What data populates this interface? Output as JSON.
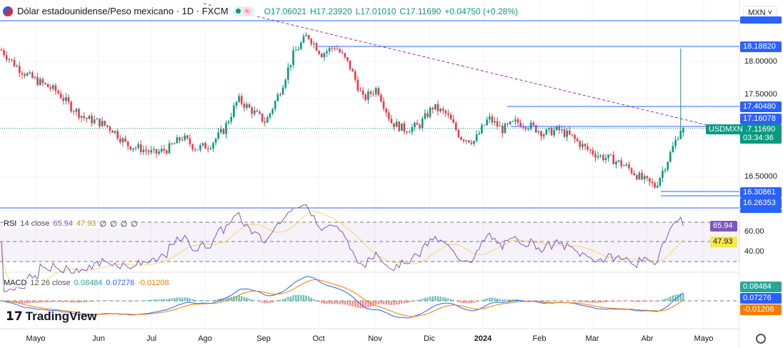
{
  "header": {
    "title": "Dólar estadounidense/Peso mexicano · 1D · FXCM",
    "open": "O17.06021",
    "high": "H17.23920",
    "low": "L17.01010",
    "close": "C17.11690",
    "change": "+0.04750 (+0.28%)",
    "market_status_icon": "market-open-dot",
    "wave_icon": "≈"
  },
  "currency_select": "MXN",
  "symbol_tag": "USDMXN",
  "price_axis": {
    "labels": [
      "18.00000",
      "17.50000",
      "16.50000"
    ],
    "tags": [
      {
        "text": "18.18820",
        "price": 18.1882,
        "color": "#2962ff"
      },
      {
        "text": "17.40480",
        "price": 17.4048,
        "color": "#2962ff"
      },
      {
        "text": "17.16078",
        "price": 17.16078,
        "color": "#2962ff"
      },
      {
        "text": "16.30861",
        "price": 16.30861,
        "color": "#2962ff"
      },
      {
        "text": "16.26353",
        "price": 16.26353,
        "color": "#2962ff"
      }
    ],
    "current": {
      "price": "17.11690",
      "countdown": "03:34:36",
      "color": "#089981"
    }
  },
  "rsi": {
    "label": "RSI",
    "params": "14 close",
    "value": "65.94",
    "ma": "47.93",
    "extra": [
      "∅",
      "∅",
      "∅",
      "∅"
    ],
    "axis": [
      "60.00",
      "40.00"
    ],
    "line_color": "#7e57c2",
    "ma_color": "#f7d56b"
  },
  "macd": {
    "label": "MACD",
    "params": "12 26 close",
    "hist": "0.08484",
    "macd": "0.07276",
    "signal": "-0.01208",
    "colors": {
      "hist": "#26a69a",
      "macd": "#2962ff",
      "signal": "#f57c00"
    }
  },
  "time_axis": [
    "Mayo",
    "Jun",
    "Jul",
    "Ago",
    "Sep",
    "Oct",
    "Nov",
    "Dic",
    "2024",
    "Feb",
    "Mar",
    "Abr",
    "Mayo"
  ],
  "logo": "TradingView",
  "colors": {
    "up": "#089981",
    "down": "#f23645",
    "line": "#2962ff",
    "trend": "#9c27b0"
  },
  "price_path": [
    18.15,
    17.95,
    17.8,
    17.7,
    17.6,
    17.4,
    17.25,
    17.2,
    17.1,
    16.9,
    16.85,
    16.78,
    16.85,
    17.0,
    16.85,
    16.9,
    17.1,
    17.5,
    17.35,
    17.2,
    17.6,
    18.1,
    18.35,
    18.1,
    18.2,
    17.95,
    17.5,
    17.65,
    17.2,
    17.1,
    17.15,
    17.4,
    17.3,
    17.0,
    16.95,
    17.25,
    17.1,
    17.2,
    17.15,
    17.05,
    17.1,
    17.0,
    16.85,
    16.75,
    16.7,
    16.6,
    16.45,
    16.35,
    16.75,
    17.2
  ]
}
